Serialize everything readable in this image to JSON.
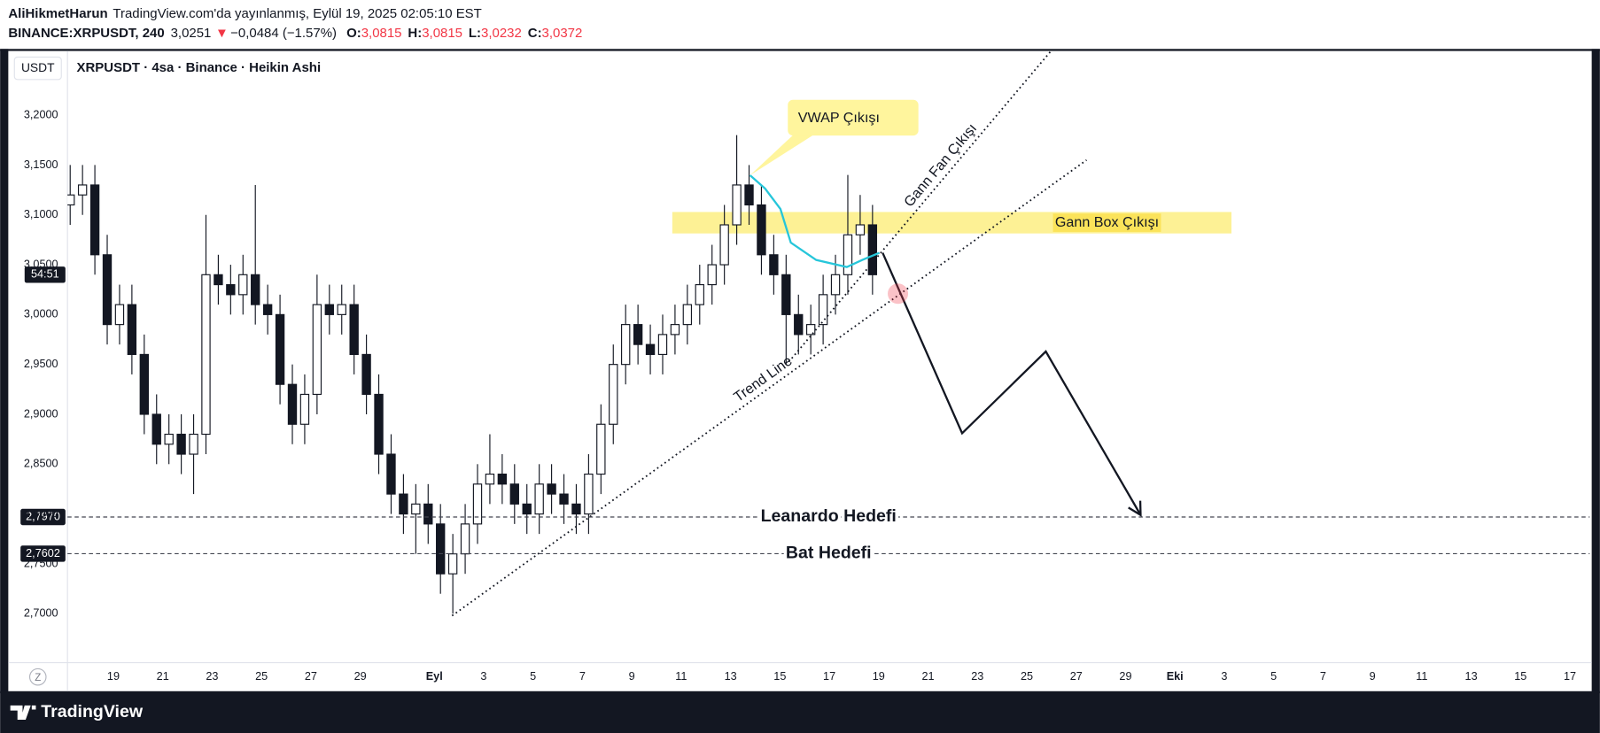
{
  "chart_data": {
    "type": "candlestick",
    "header": {
      "author": "AliHikmetHarun",
      "published": "TradingView.com'da yayınlanmış, Eylül 19, 2025 02:05:10 EST",
      "symbol": "BINANCE:XRPUSDT, 240",
      "last": "3,0251",
      "change_icon": "▼",
      "change": "−0,0484 (−1.57%)",
      "ohlc": [
        {
          "key": "O:",
          "value": "3,0815"
        },
        {
          "key": "H:",
          "value": "3,0815"
        },
        {
          "key": "L:",
          "value": "3,0232"
        },
        {
          "key": "C:",
          "value": "3,0372"
        }
      ]
    },
    "currency": "USDT",
    "legend": "XRPUSDT · 4sa · Binance · Heikin Ashi",
    "z_button": "Z",
    "brand": "TradingView",
    "countdown": "54:51",
    "color_up": "#ffffff",
    "color_down": "#131722",
    "grid": false,
    "xlim": [
      -1.86,
      59.8
    ],
    "ylim": [
      2.6509,
      3.2644
    ],
    "yticks": [
      {
        "value": 2.7,
        "label": "2,7000"
      },
      {
        "value": 2.75,
        "label": "2,7500"
      },
      {
        "value": 2.8,
        "label": "2,8000"
      },
      {
        "value": 2.85,
        "label": "2,8500"
      },
      {
        "value": 2.9,
        "label": "2,9000"
      },
      {
        "value": 2.95,
        "label": "2,9500"
      },
      {
        "value": 3.0,
        "label": "3,0000"
      },
      {
        "value": 3.05,
        "label": "3,0500"
      },
      {
        "value": 3.1,
        "label": "3,1000"
      },
      {
        "value": 3.15,
        "label": "3,1500"
      },
      {
        "value": 3.2,
        "label": "3,2000"
      }
    ],
    "xticks": [
      {
        "value": 0,
        "label": "19"
      },
      {
        "value": 2,
        "label": "21"
      },
      {
        "value": 4,
        "label": "23"
      },
      {
        "value": 6,
        "label": "25"
      },
      {
        "value": 8,
        "label": "27"
      },
      {
        "value": 10,
        "label": "29"
      },
      {
        "value": 13,
        "label": "Eyl"
      },
      {
        "value": 15,
        "label": "3"
      },
      {
        "value": 17,
        "label": "5"
      },
      {
        "value": 19,
        "label": "7"
      },
      {
        "value": 21,
        "label": "9"
      },
      {
        "value": 23,
        "label": "11"
      },
      {
        "value": 25,
        "label": "13"
      },
      {
        "value": 27,
        "label": "15"
      },
      {
        "value": 29,
        "label": "17"
      },
      {
        "value": 31,
        "label": "19"
      },
      {
        "value": 33,
        "label": "21"
      },
      {
        "value": 35,
        "label": "23"
      },
      {
        "value": 37,
        "label": "25"
      },
      {
        "value": 39,
        "label": "27"
      },
      {
        "value": 41,
        "label": "29"
      },
      {
        "value": 43,
        "label": "Eki"
      },
      {
        "value": 45,
        "label": "3"
      },
      {
        "value": 47,
        "label": "5"
      },
      {
        "value": 49,
        "label": "7"
      },
      {
        "value": 51,
        "label": "9"
      },
      {
        "value": 53,
        "label": "11"
      },
      {
        "value": 55,
        "label": "13"
      },
      {
        "value": 57,
        "label": "15"
      },
      {
        "value": 59,
        "label": "17"
      }
    ],
    "x": [
      -1.75,
      -1.25,
      -0.75,
      -0.25,
      0.25,
      0.75,
      1.25,
      1.75,
      2.25,
      2.75,
      3.25,
      3.75,
      4.25,
      4.75,
      5.25,
      5.75,
      6.25,
      6.75,
      7.25,
      7.75,
      8.25,
      8.75,
      9.25,
      9.75,
      10.25,
      10.75,
      11.25,
      11.75,
      12.25,
      12.75,
      13.25,
      13.75,
      14.25,
      14.75,
      15.25,
      15.75,
      16.25,
      16.75,
      17.25,
      17.75,
      18.25,
      18.75,
      19.25,
      19.75,
      20.25,
      20.75,
      21.25,
      21.75,
      22.25,
      22.75,
      23.25,
      23.75,
      24.25,
      24.75,
      25.25,
      25.75,
      26.25,
      26.75,
      27.25,
      27.75,
      28.25,
      28.75,
      29.25,
      29.75,
      30.25,
      30.75
    ],
    "open": [
      3.11,
      3.12,
      3.13,
      3.06,
      2.99,
      3.01,
      2.96,
      2.9,
      2.87,
      2.88,
      2.86,
      2.88,
      3.04,
      3.03,
      3.02,
      3.04,
      3.01,
      3.0,
      2.93,
      2.89,
      2.92,
      3.01,
      3.0,
      3.01,
      2.96,
      2.92,
      2.86,
      2.82,
      2.8,
      2.81,
      2.79,
      2.74,
      2.76,
      2.79,
      2.83,
      2.84,
      2.83,
      2.81,
      2.8,
      2.83,
      2.82,
      2.81,
      2.8,
      2.84,
      2.89,
      2.95,
      2.99,
      2.97,
      2.96,
      2.98,
      2.99,
      3.01,
      3.03,
      3.05,
      3.09,
      3.13,
      3.11,
      3.06,
      3.04,
      3.0,
      2.98,
      2.99,
      3.02,
      3.04,
      3.08,
      3.09
    ],
    "high": [
      3.15,
      3.15,
      3.15,
      3.08,
      3.03,
      3.03,
      2.98,
      2.92,
      2.9,
      2.9,
      2.9,
      3.1,
      3.06,
      3.05,
      3.06,
      3.13,
      3.03,
      3.02,
      2.95,
      2.94,
      3.04,
      3.03,
      3.03,
      3.03,
      2.98,
      2.94,
      2.88,
      2.84,
      2.83,
      2.83,
      2.81,
      2.78,
      2.81,
      2.85,
      2.88,
      2.86,
      2.85,
      2.83,
      2.85,
      2.85,
      2.84,
      2.83,
      2.86,
      2.91,
      2.97,
      3.01,
      3.01,
      2.99,
      3.0,
      3.01,
      3.03,
      3.05,
      3.07,
      3.11,
      3.18,
      3.15,
      3.13,
      3.08,
      3.06,
      3.02,
      3.01,
      3.04,
      3.06,
      3.14,
      3.12,
      3.11
    ],
    "low": [
      3.09,
      3.1,
      3.04,
      2.97,
      2.97,
      2.94,
      2.88,
      2.85,
      2.85,
      2.84,
      2.82,
      2.86,
      3.01,
      3.0,
      3.0,
      2.99,
      2.98,
      2.91,
      2.87,
      2.87,
      2.9,
      2.98,
      2.98,
      2.94,
      2.9,
      2.84,
      2.8,
      2.78,
      2.76,
      2.77,
      2.72,
      2.7,
      2.74,
      2.77,
      2.81,
      2.81,
      2.79,
      2.78,
      2.78,
      2.8,
      2.79,
      2.78,
      2.78,
      2.82,
      2.87,
      2.93,
      2.95,
      2.94,
      2.94,
      2.96,
      2.97,
      2.99,
      3.01,
      3.03,
      3.07,
      3.09,
      3.04,
      3.02,
      2.95,
      2.96,
      2.96,
      2.97,
      3.0,
      3.02,
      3.06,
      3.02
    ],
    "close": [
      3.12,
      3.13,
      3.06,
      2.99,
      3.01,
      2.96,
      2.9,
      2.87,
      2.88,
      2.86,
      2.88,
      3.04,
      3.03,
      3.02,
      3.04,
      3.01,
      3.0,
      2.93,
      2.89,
      2.92,
      3.01,
      3.0,
      3.01,
      2.96,
      2.92,
      2.86,
      2.82,
      2.8,
      2.81,
      2.79,
      2.74,
      2.76,
      2.79,
      2.83,
      2.84,
      2.83,
      2.81,
      2.8,
      2.83,
      2.82,
      2.81,
      2.8,
      2.84,
      2.89,
      2.95,
      2.99,
      2.97,
      2.96,
      2.98,
      2.99,
      3.01,
      3.03,
      3.05,
      3.09,
      3.13,
      3.11,
      3.06,
      3.04,
      3.0,
      2.98,
      2.99,
      3.02,
      3.04,
      3.08,
      3.09,
      3.04
    ],
    "gann_box": {
      "label": "Gann Box Çıkışı",
      "color": "#fdf08a",
      "label_color": "#fbe35a",
      "x": [
        22.64,
        45.29
      ],
      "y": [
        3.0814,
        3.1029
      ]
    },
    "vwap": {
      "label": "VWAP Çıkışı",
      "color": "#26c6da",
      "callout_color": "#fff59d",
      "x": [
        25.79,
        26.4,
        27.02,
        27.44,
        28.47,
        29.71,
        30.33,
        31.03
      ],
      "y": [
        3.1397,
        3.1264,
        3.1059,
        3.0722,
        3.0548,
        3.0477,
        3.0548,
        3.062
      ]
    },
    "trend_line": {
      "label": "Trend Line",
      "x": [
        13.72,
        39.42
      ],
      "y": [
        2.698,
        3.155
      ]
    },
    "gann_fan": {
      "label": "Gann Fan Çıkışı",
      "x": [
        27.36,
        37.98
      ],
      "y": [
        2.9526,
        3.2644
      ]
    },
    "projection": {
      "x": [
        31.16,
        34.38,
        37.77,
        41.61
      ],
      "y": [
        3.062,
        2.881,
        2.963,
        2.799
      ]
    },
    "marker": {
      "x": 31.78,
      "y": 3.021,
      "color": "#f23645"
    },
    "levels": [
      {
        "value": 2.797,
        "label": "2,7970",
        "name": "Leanardo Hedefi"
      },
      {
        "value": 2.7602,
        "label": "2,7602",
        "name": "Bat Hedefi"
      }
    ]
  }
}
